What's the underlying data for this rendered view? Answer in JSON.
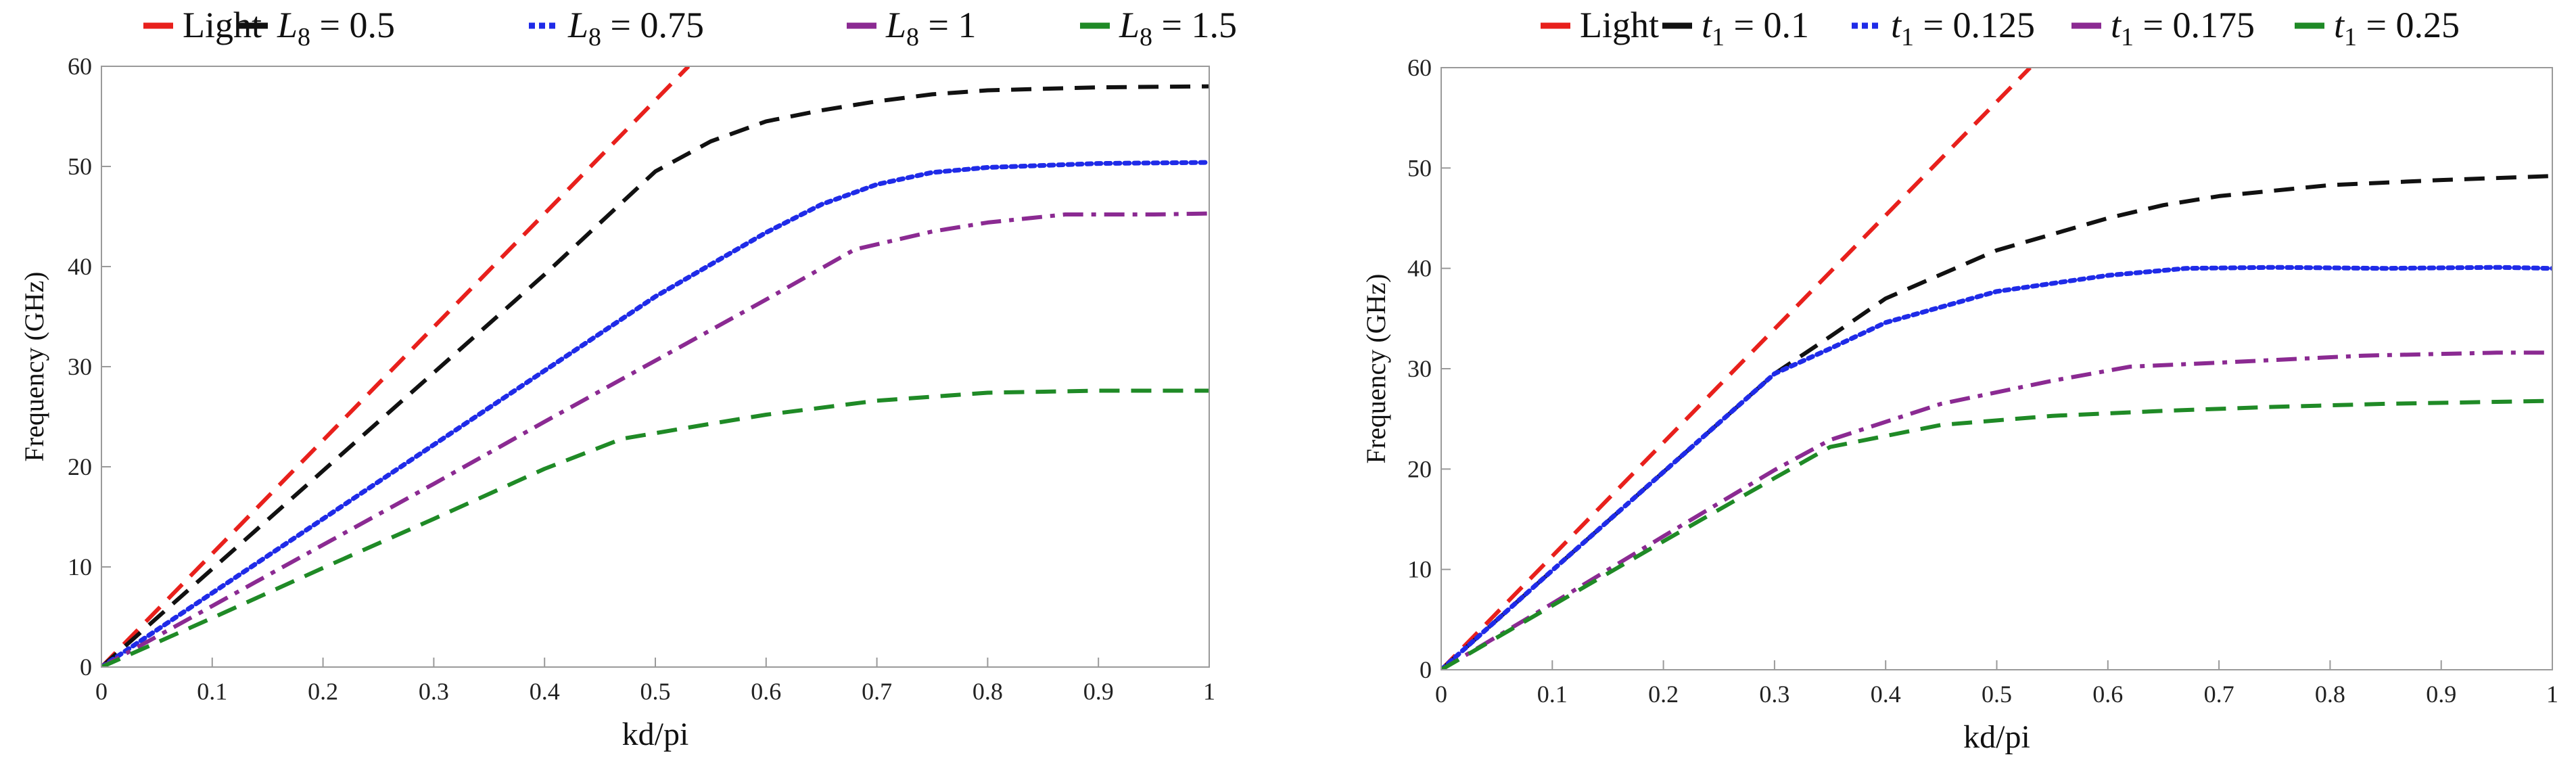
{
  "colors": {
    "red": "#e8201c",
    "black": "#111111",
    "blue": "#1f2be8",
    "purple": "#8b2a92",
    "green": "#1f8a26",
    "navy": "#1d1f7a"
  },
  "chart_data": [
    {
      "type": "line",
      "title": "",
      "xlabel": "kd/pi",
      "ylabel": "Frequency (GHz)",
      "xlim": [
        0,
        1
      ],
      "ylim": [
        0,
        60
      ],
      "xticks": [
        "0",
        "0.1",
        "0.2",
        "0.3",
        "0.4",
        "0.5",
        "0.6",
        "0.7",
        "0.8",
        "0.9",
        "1"
      ],
      "yticks": [
        "0",
        "10",
        "20",
        "30",
        "40",
        "50",
        "60"
      ],
      "grid": false,
      "legend_position": "top",
      "legend": [
        {
          "var": "",
          "sub": "",
          "value": "Light"
        },
        {
          "var": "L",
          "sub": "8",
          "value": " = 0.5"
        },
        {
          "var": "L",
          "sub": "8",
          "value": " = 0.75"
        },
        {
          "var": "L",
          "sub": "8",
          "value": " = 1"
        },
        {
          "var": "L",
          "sub": "8",
          "value": " = 1.5"
        }
      ],
      "series": [
        {
          "name": "Light",
          "color": "red",
          "dash": "dashed",
          "x": [
            0,
            0.53
          ],
          "y": [
            0,
            60
          ]
        },
        {
          "name": "L8 = 0.5",
          "color": "black",
          "dash": "dashed",
          "x": [
            0,
            0.1,
            0.2,
            0.3,
            0.4,
            0.5,
            0.55,
            0.6,
            0.65,
            0.7,
            0.75,
            0.8,
            0.9,
            1.0
          ],
          "y": [
            0,
            9.8,
            19.6,
            29.4,
            39.2,
            49.5,
            52.5,
            54.5,
            55.6,
            56.5,
            57.2,
            57.6,
            57.9,
            58.0
          ]
        },
        {
          "name": "L8 = 0.75",
          "color": "blue",
          "dash": "dotted",
          "x": [
            0,
            0.1,
            0.2,
            0.3,
            0.4,
            0.5,
            0.55,
            0.6,
            0.65,
            0.7,
            0.75,
            0.8,
            0.9,
            1.0
          ],
          "y": [
            0,
            7.4,
            14.8,
            22.2,
            29.6,
            37.0,
            40.2,
            43.4,
            46.2,
            48.2,
            49.4,
            49.9,
            50.3,
            50.4
          ]
        },
        {
          "name": "L8 = 1",
          "color": "purple",
          "dash": "dashdot",
          "x": [
            0,
            0.1,
            0.2,
            0.3,
            0.4,
            0.5,
            0.6,
            0.68,
            0.75,
            0.8,
            0.87,
            0.95,
            1.0
          ],
          "y": [
            0,
            6.1,
            12.2,
            18.3,
            24.5,
            30.6,
            36.7,
            41.7,
            43.5,
            44.4,
            45.2,
            45.2,
            45.3
          ]
        },
        {
          "name": "L8 = 1.5",
          "color": "green",
          "dash": "dashed",
          "x": [
            0,
            0.1,
            0.2,
            0.3,
            0.4,
            0.47,
            0.55,
            0.6,
            0.7,
            0.8,
            0.9,
            1.0
          ],
          "y": [
            0,
            4.9,
            9.9,
            14.8,
            19.8,
            22.8,
            24.3,
            25.2,
            26.6,
            27.4,
            27.6,
            27.6
          ]
        }
      ]
    },
    {
      "type": "line",
      "title": "",
      "xlabel": "kd/pi",
      "ylabel": "Frequency (GHz)",
      "xlim": [
        0,
        1
      ],
      "ylim": [
        0,
        60
      ],
      "xticks": [
        "0",
        "0.1",
        "0.2",
        "0.3",
        "0.4",
        "0.5",
        "0.6",
        "0.7",
        "0.8",
        "0.9",
        "1"
      ],
      "yticks": [
        "0",
        "10",
        "20",
        "30",
        "40",
        "50",
        "60"
      ],
      "grid": false,
      "legend_position": "top",
      "legend": [
        {
          "var": "",
          "sub": "",
          "value": "Light"
        },
        {
          "var": "t",
          "sub": "1",
          "value": " = 0.1"
        },
        {
          "var": "t",
          "sub": "1",
          "value": " = 0.125"
        },
        {
          "var": "t",
          "sub": "1",
          "value": " = 0.175"
        },
        {
          "var": "t",
          "sub": "1",
          "value": " = 0.25"
        }
      ],
      "series": [
        {
          "name": "Light",
          "color": "red",
          "dash": "dashed",
          "x": [
            0,
            0.53
          ],
          "y": [
            0,
            60
          ]
        },
        {
          "name": "t1 = 0.1",
          "color": "black",
          "dash": "dashed",
          "x": [
            0,
            0.1,
            0.2,
            0.3,
            0.35,
            0.4,
            0.5,
            0.6,
            0.65,
            0.7,
            0.8,
            0.9,
            1.0
          ],
          "y": [
            0,
            9.9,
            19.7,
            29.5,
            33.2,
            37.0,
            41.8,
            45.0,
            46.3,
            47.2,
            48.3,
            48.8,
            49.2
          ]
        },
        {
          "name": "t1 = 0.125",
          "color": "blue",
          "dash": "dotted",
          "x": [
            0,
            0.1,
            0.2,
            0.3,
            0.35,
            0.4,
            0.5,
            0.6,
            0.67,
            0.75,
            0.85,
            0.95,
            1.0
          ],
          "y": [
            0,
            9.9,
            19.7,
            29.5,
            32.0,
            34.6,
            37.7,
            39.3,
            40.0,
            40.1,
            40.0,
            40.1,
            40.0
          ]
        },
        {
          "name": "t1 = 0.175",
          "color": "purple",
          "dash": "dashdot",
          "x": [
            0,
            0.1,
            0.2,
            0.3,
            0.35,
            0.45,
            0.55,
            0.62,
            0.7,
            0.83,
            0.95,
            1.0
          ],
          "y": [
            0,
            6.6,
            13.3,
            19.9,
            22.9,
            26.5,
            28.8,
            30.2,
            30.6,
            31.3,
            31.6,
            31.6
          ]
        },
        {
          "name": "t1 = 0.25",
          "color": "green",
          "dash": "dashed",
          "x": [
            0,
            0.1,
            0.2,
            0.3,
            0.35,
            0.45,
            0.55,
            0.65,
            0.75,
            0.85,
            0.95,
            1.0
          ],
          "y": [
            0,
            6.4,
            12.8,
            19.1,
            22.2,
            24.4,
            25.3,
            25.8,
            26.2,
            26.5,
            26.7,
            26.8
          ]
        }
      ]
    }
  ]
}
